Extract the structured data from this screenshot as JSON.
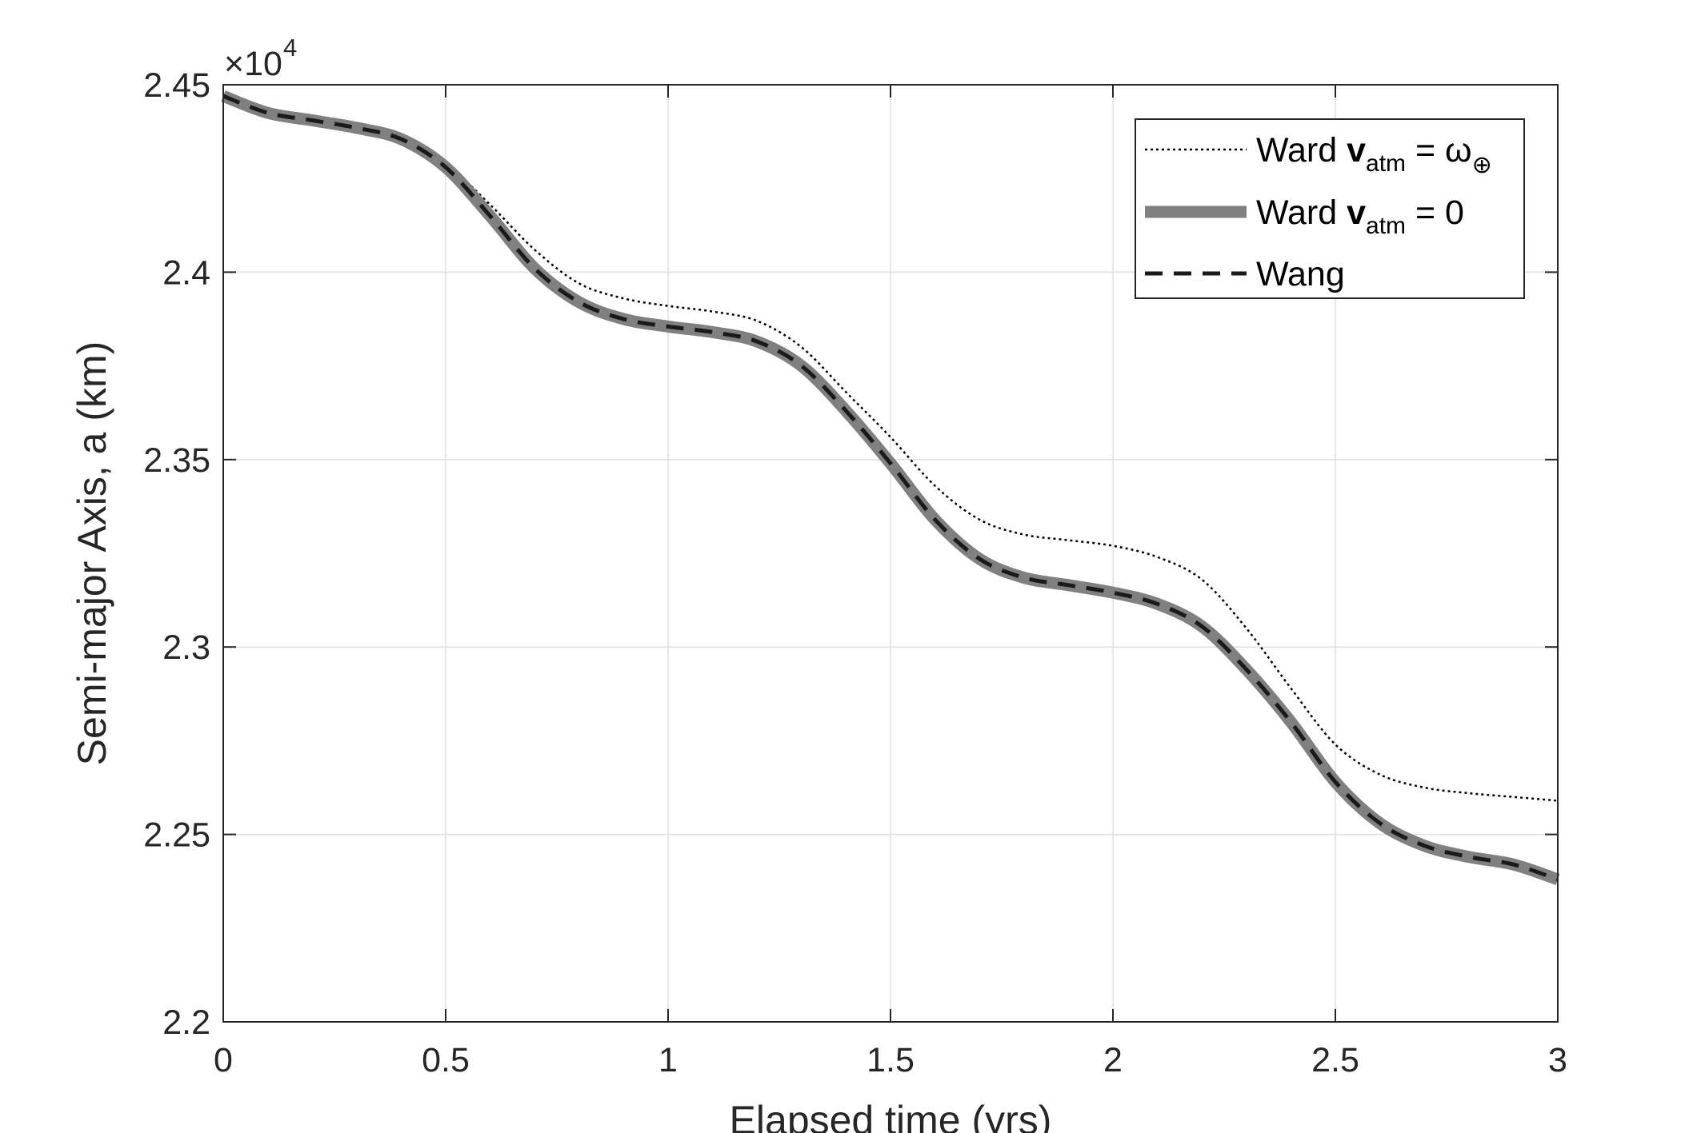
{
  "chart_data": {
    "type": "line",
    "xlabel": "Elapsed time (yrs)",
    "ylabel": "Semi-major Axis, a (km)",
    "xlim": [
      0,
      3
    ],
    "ylim": [
      22000,
      24500
    ],
    "x_ticks": [
      0,
      0.5,
      1,
      1.5,
      2,
      2.5,
      3
    ],
    "x_tick_labels": [
      "0",
      "0.5",
      "1",
      "1.5",
      "2",
      "2.5",
      "3"
    ],
    "y_ticks": [
      22000,
      22500,
      23000,
      23500,
      24000,
      24500
    ],
    "y_tick_labels": [
      "2.2",
      "2.25",
      "2.3",
      "2.35",
      "2.4",
      "2.45"
    ],
    "y_exponent_label": "×10",
    "y_exponent_power": "4",
    "grid": true,
    "legend_position": "top-right",
    "x": [
      0,
      0.1,
      0.2,
      0.3,
      0.4,
      0.5,
      0.6,
      0.7,
      0.8,
      0.9,
      1.0,
      1.1,
      1.2,
      1.3,
      1.4,
      1.5,
      1.6,
      1.7,
      1.8,
      1.9,
      2.0,
      2.1,
      2.2,
      2.3,
      2.4,
      2.5,
      2.6,
      2.7,
      2.8,
      2.9,
      3.0
    ],
    "series": [
      {
        "name_prefix": "Ward ",
        "name_bold": "v",
        "name_sub": "atm",
        "name_suffix": " = ω",
        "name_sub2": "⊕",
        "style": "dotted",
        "color": "#000000",
        "values": [
          24470,
          24425,
          24405,
          24385,
          24355,
          24290,
          24180,
          24060,
          23970,
          23930,
          23910,
          23895,
          23870,
          23800,
          23680,
          23560,
          23430,
          23340,
          23300,
          23285,
          23270,
          23240,
          23180,
          23050,
          22890,
          22740,
          22660,
          22625,
          22610,
          22600,
          22590
        ]
      },
      {
        "name_prefix": "Ward ",
        "name_bold": "v",
        "name_sub": "atm",
        "name_suffix": " = 0",
        "name_sub2": "",
        "style": "thick",
        "color": "#808080",
        "values": [
          24470,
          24425,
          24405,
          24385,
          24355,
          24280,
          24150,
          24010,
          23920,
          23875,
          23855,
          23840,
          23815,
          23750,
          23630,
          23490,
          23340,
          23235,
          23185,
          23165,
          23145,
          23115,
          23055,
          22940,
          22800,
          22640,
          22530,
          22470,
          22440,
          22420,
          22380
        ]
      },
      {
        "name_prefix": "Wang",
        "name_bold": "",
        "name_sub": "",
        "name_suffix": "",
        "name_sub2": "",
        "style": "dashed",
        "color": "#1a1a1a",
        "values": [
          24470,
          24425,
          24405,
          24385,
          24355,
          24280,
          24150,
          24010,
          23920,
          23875,
          23855,
          23840,
          23815,
          23750,
          23630,
          23490,
          23340,
          23235,
          23185,
          23165,
          23145,
          23115,
          23055,
          22940,
          22800,
          22640,
          22530,
          22470,
          22440,
          22420,
          22380
        ]
      }
    ]
  }
}
